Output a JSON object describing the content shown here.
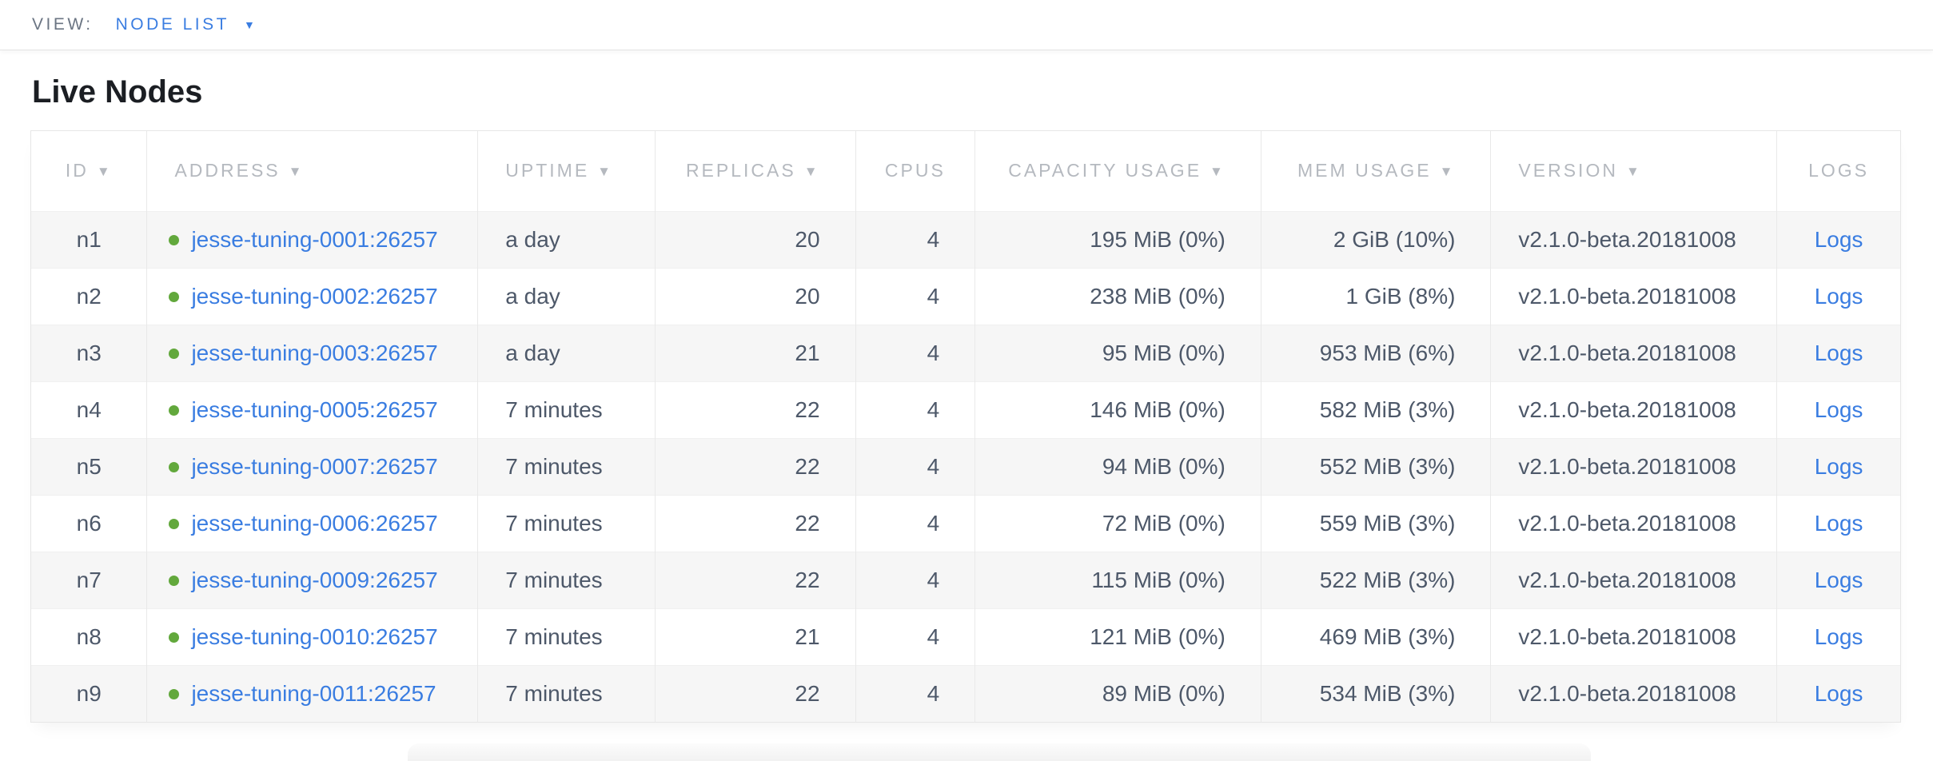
{
  "view_bar": {
    "label": "VIEW:",
    "selected": "NODE LIST"
  },
  "page": {
    "title": "Live Nodes"
  },
  "icons": {
    "sort_desc": "▼",
    "caret_down": "▼"
  },
  "colors": {
    "accent_link_blue": "#3a7de1",
    "live_status_green": "#62a83c",
    "header_text_gray": "#b5b9bf",
    "cell_text_slate": "#4d5869",
    "alt_row_bg": "#f6f6f6",
    "border_gray": "#e6e6e6"
  },
  "table": {
    "columns": [
      {
        "key": "id",
        "label": "ID",
        "sortable": true,
        "header_align": "center",
        "cell_align": "center"
      },
      {
        "key": "address",
        "label": "ADDRESS",
        "sortable": true,
        "header_align": "left",
        "cell_align": "address"
      },
      {
        "key": "uptime",
        "label": "UPTIME",
        "sortable": true,
        "header_align": "left",
        "cell_align": "left"
      },
      {
        "key": "replicas",
        "label": "REPLICAS",
        "sortable": true,
        "header_align": "right",
        "cell_align": "right"
      },
      {
        "key": "cpus",
        "label": "CPUS",
        "sortable": false,
        "header_align": "center",
        "cell_align": "right"
      },
      {
        "key": "capacity",
        "label": "CAPACITY USAGE",
        "sortable": true,
        "header_align": "right",
        "cell_align": "right"
      },
      {
        "key": "mem",
        "label": "MEM USAGE",
        "sortable": true,
        "header_align": "right",
        "cell_align": "right"
      },
      {
        "key": "version",
        "label": "VERSION",
        "sortable": true,
        "header_align": "left",
        "cell_align": "left"
      },
      {
        "key": "logs",
        "label": "LOGS",
        "sortable": false,
        "header_align": "center",
        "cell_align": "center"
      }
    ],
    "rows": [
      {
        "id": "n1",
        "status": "live",
        "address": "jesse-tuning-0001:26257",
        "uptime": "a day",
        "replicas": "20",
        "cpus": "4",
        "capacity": "195 MiB (0%)",
        "mem": "2 GiB (10%)",
        "version": "v2.1.0-beta.20181008",
        "logs": "Logs"
      },
      {
        "id": "n2",
        "status": "live",
        "address": "jesse-tuning-0002:26257",
        "uptime": "a day",
        "replicas": "20",
        "cpus": "4",
        "capacity": "238 MiB (0%)",
        "mem": "1 GiB (8%)",
        "version": "v2.1.0-beta.20181008",
        "logs": "Logs"
      },
      {
        "id": "n3",
        "status": "live",
        "address": "jesse-tuning-0003:26257",
        "uptime": "a day",
        "replicas": "21",
        "cpus": "4",
        "capacity": "95 MiB (0%)",
        "mem": "953 MiB (6%)",
        "version": "v2.1.0-beta.20181008",
        "logs": "Logs"
      },
      {
        "id": "n4",
        "status": "live",
        "address": "jesse-tuning-0005:26257",
        "uptime": "7 minutes",
        "replicas": "22",
        "cpus": "4",
        "capacity": "146 MiB (0%)",
        "mem": "582 MiB (3%)",
        "version": "v2.1.0-beta.20181008",
        "logs": "Logs"
      },
      {
        "id": "n5",
        "status": "live",
        "address": "jesse-tuning-0007:26257",
        "uptime": "7 minutes",
        "replicas": "22",
        "cpus": "4",
        "capacity": "94 MiB (0%)",
        "mem": "552 MiB (3%)",
        "version": "v2.1.0-beta.20181008",
        "logs": "Logs"
      },
      {
        "id": "n6",
        "status": "live",
        "address": "jesse-tuning-0006:26257",
        "uptime": "7 minutes",
        "replicas": "22",
        "cpus": "4",
        "capacity": "72 MiB (0%)",
        "mem": "559 MiB (3%)",
        "version": "v2.1.0-beta.20181008",
        "logs": "Logs"
      },
      {
        "id": "n7",
        "status": "live",
        "address": "jesse-tuning-0009:26257",
        "uptime": "7 minutes",
        "replicas": "22",
        "cpus": "4",
        "capacity": "115 MiB (0%)",
        "mem": "522 MiB (3%)",
        "version": "v2.1.0-beta.20181008",
        "logs": "Logs"
      },
      {
        "id": "n8",
        "status": "live",
        "address": "jesse-tuning-0010:26257",
        "uptime": "7 minutes",
        "replicas": "21",
        "cpus": "4",
        "capacity": "121 MiB (0%)",
        "mem": "469 MiB (3%)",
        "version": "v2.1.0-beta.20181008",
        "logs": "Logs"
      },
      {
        "id": "n9",
        "status": "live",
        "address": "jesse-tuning-0011:26257",
        "uptime": "7 minutes",
        "replicas": "22",
        "cpus": "4",
        "capacity": "89 MiB (0%)",
        "mem": "534 MiB (3%)",
        "version": "v2.1.0-beta.20181008",
        "logs": "Logs"
      }
    ]
  }
}
